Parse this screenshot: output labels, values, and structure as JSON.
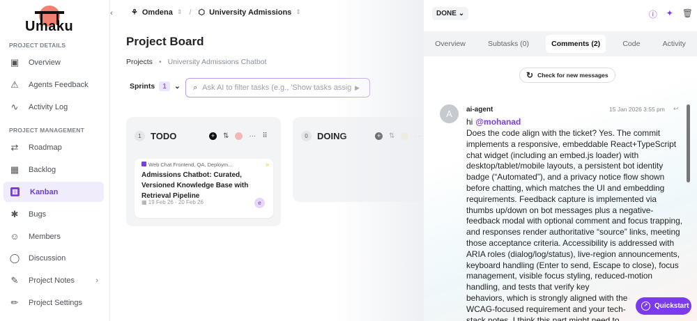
{
  "app": {
    "logo": "Umaku"
  },
  "sidebar": {
    "sections": [
      "PROJECT DETAILS",
      "PROJECT MANAGEMENT"
    ],
    "items": [
      {
        "label": "Overview",
        "icon": "grid-icon"
      },
      {
        "label": "Agents Feedback",
        "icon": "feedback-icon"
      },
      {
        "label": "Activity Log",
        "icon": "activity-icon"
      },
      {
        "label": "Roadmap",
        "icon": "roadmap-icon"
      },
      {
        "label": "Backlog",
        "icon": "backlog-icon"
      },
      {
        "label": "Kanban",
        "icon": "kanban-icon",
        "active": true
      },
      {
        "label": "Bugs",
        "icon": "bug-icon"
      },
      {
        "label": "Members",
        "icon": "members-icon"
      },
      {
        "label": "Discussion",
        "icon": "chat-icon"
      },
      {
        "label": "Project Notes",
        "icon": "notes-icon"
      },
      {
        "label": "Project Settings",
        "icon": "pencil-icon"
      }
    ]
  },
  "header": {
    "org": "Omdena",
    "project": "University Admissions"
  },
  "main": {
    "title": "Project Board",
    "breadcrumb": [
      "Projects",
      "University Admissions Chatbot"
    ],
    "sprints_label": "Sprints",
    "sprints_count": "1",
    "search_placeholder": "Ask AI to filter tasks (e.g., 'Show tasks assig",
    "columns": [
      {
        "name": "TODO",
        "count": "1",
        "color": "#f4b8b4"
      },
      {
        "name": "DOING",
        "count": "0",
        "color": "#f3e7b0"
      }
    ],
    "card": {
      "tags": "Web Chat Frontend, QA, Deploym...",
      "title": "Admissions Chatbot: Curated, Versioned Knowledge Base with Retrieval Pipeline",
      "dates": "19 Feb 26 - 20 Feb 26",
      "assignee": "e"
    }
  },
  "panel": {
    "status": "DONE",
    "tabs": [
      "Overview",
      "Subtasks (0)",
      "Comments (2)",
      "Code",
      "Activity"
    ],
    "check_label": "Check for new messages",
    "comment": {
      "avatar": "A",
      "author": "ai-agent",
      "time": "15 Jan 2026 3:55 pm",
      "greeting": "hi",
      "mention": "@mohanad",
      "body": "Does the code align with the ticket? Yes. The commit implements a responsive, embeddable React+TypeScript chat widget (including an embed.js loader) with desktop/tablet/mobile layouts, a persistent bot identity badge (“Automated”), and a privacy notice flow shown before chatting, which matches the UI and embedding requirements. Feedback capture is implemented via thumbs up/down on bot messages plus a negative-feedback modal with optional comment and focus trapping, and responses render authoritative “source” links, meeting those acceptance criteria. Accessibility is addressed with ARIA roles (dialog/log/status), live-region announcements, keyboard handling (Enter to send, Escape to close), focus management, visible focus styling, reduced-motion handling, and tests that verify key behaviors, which is strongly aligned with the WCAG-focused requirement and your tech-stack notes. I think this part might need to be rechecked: in Cha"
    }
  },
  "quickstart": "Quickstart"
}
